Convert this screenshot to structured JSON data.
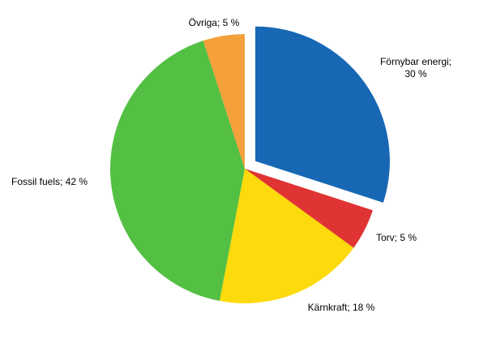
{
  "chart_data": {
    "type": "pie",
    "title": "",
    "start": "12 o'clock",
    "direction": "clockwise",
    "exploded_slice": "Förnybar energi",
    "slices": [
      {
        "label_lines": [
          "Förnybar energi;",
          "30 %"
        ],
        "name": "Förnybar energi",
        "value": 30,
        "color": "#1767b4"
      },
      {
        "label_lines": [
          "Torv; 5 %"
        ],
        "name": "Torv",
        "value": 5,
        "color": "#e03333"
      },
      {
        "label_lines": [
          "Kärnkraft; 18 %"
        ],
        "name": "Kärnkraft",
        "value": 18,
        "color": "#fdda0b"
      },
      {
        "label_lines": [
          "Fossil fuels; 42 %"
        ],
        "name": "Fossil fuels",
        "value": 42,
        "color": "#53bf43"
      },
      {
        "label_lines": [
          "Övriga; 5 %"
        ],
        "name": "Övriga",
        "value": 5,
        "color": "#f4a03b"
      }
    ]
  }
}
